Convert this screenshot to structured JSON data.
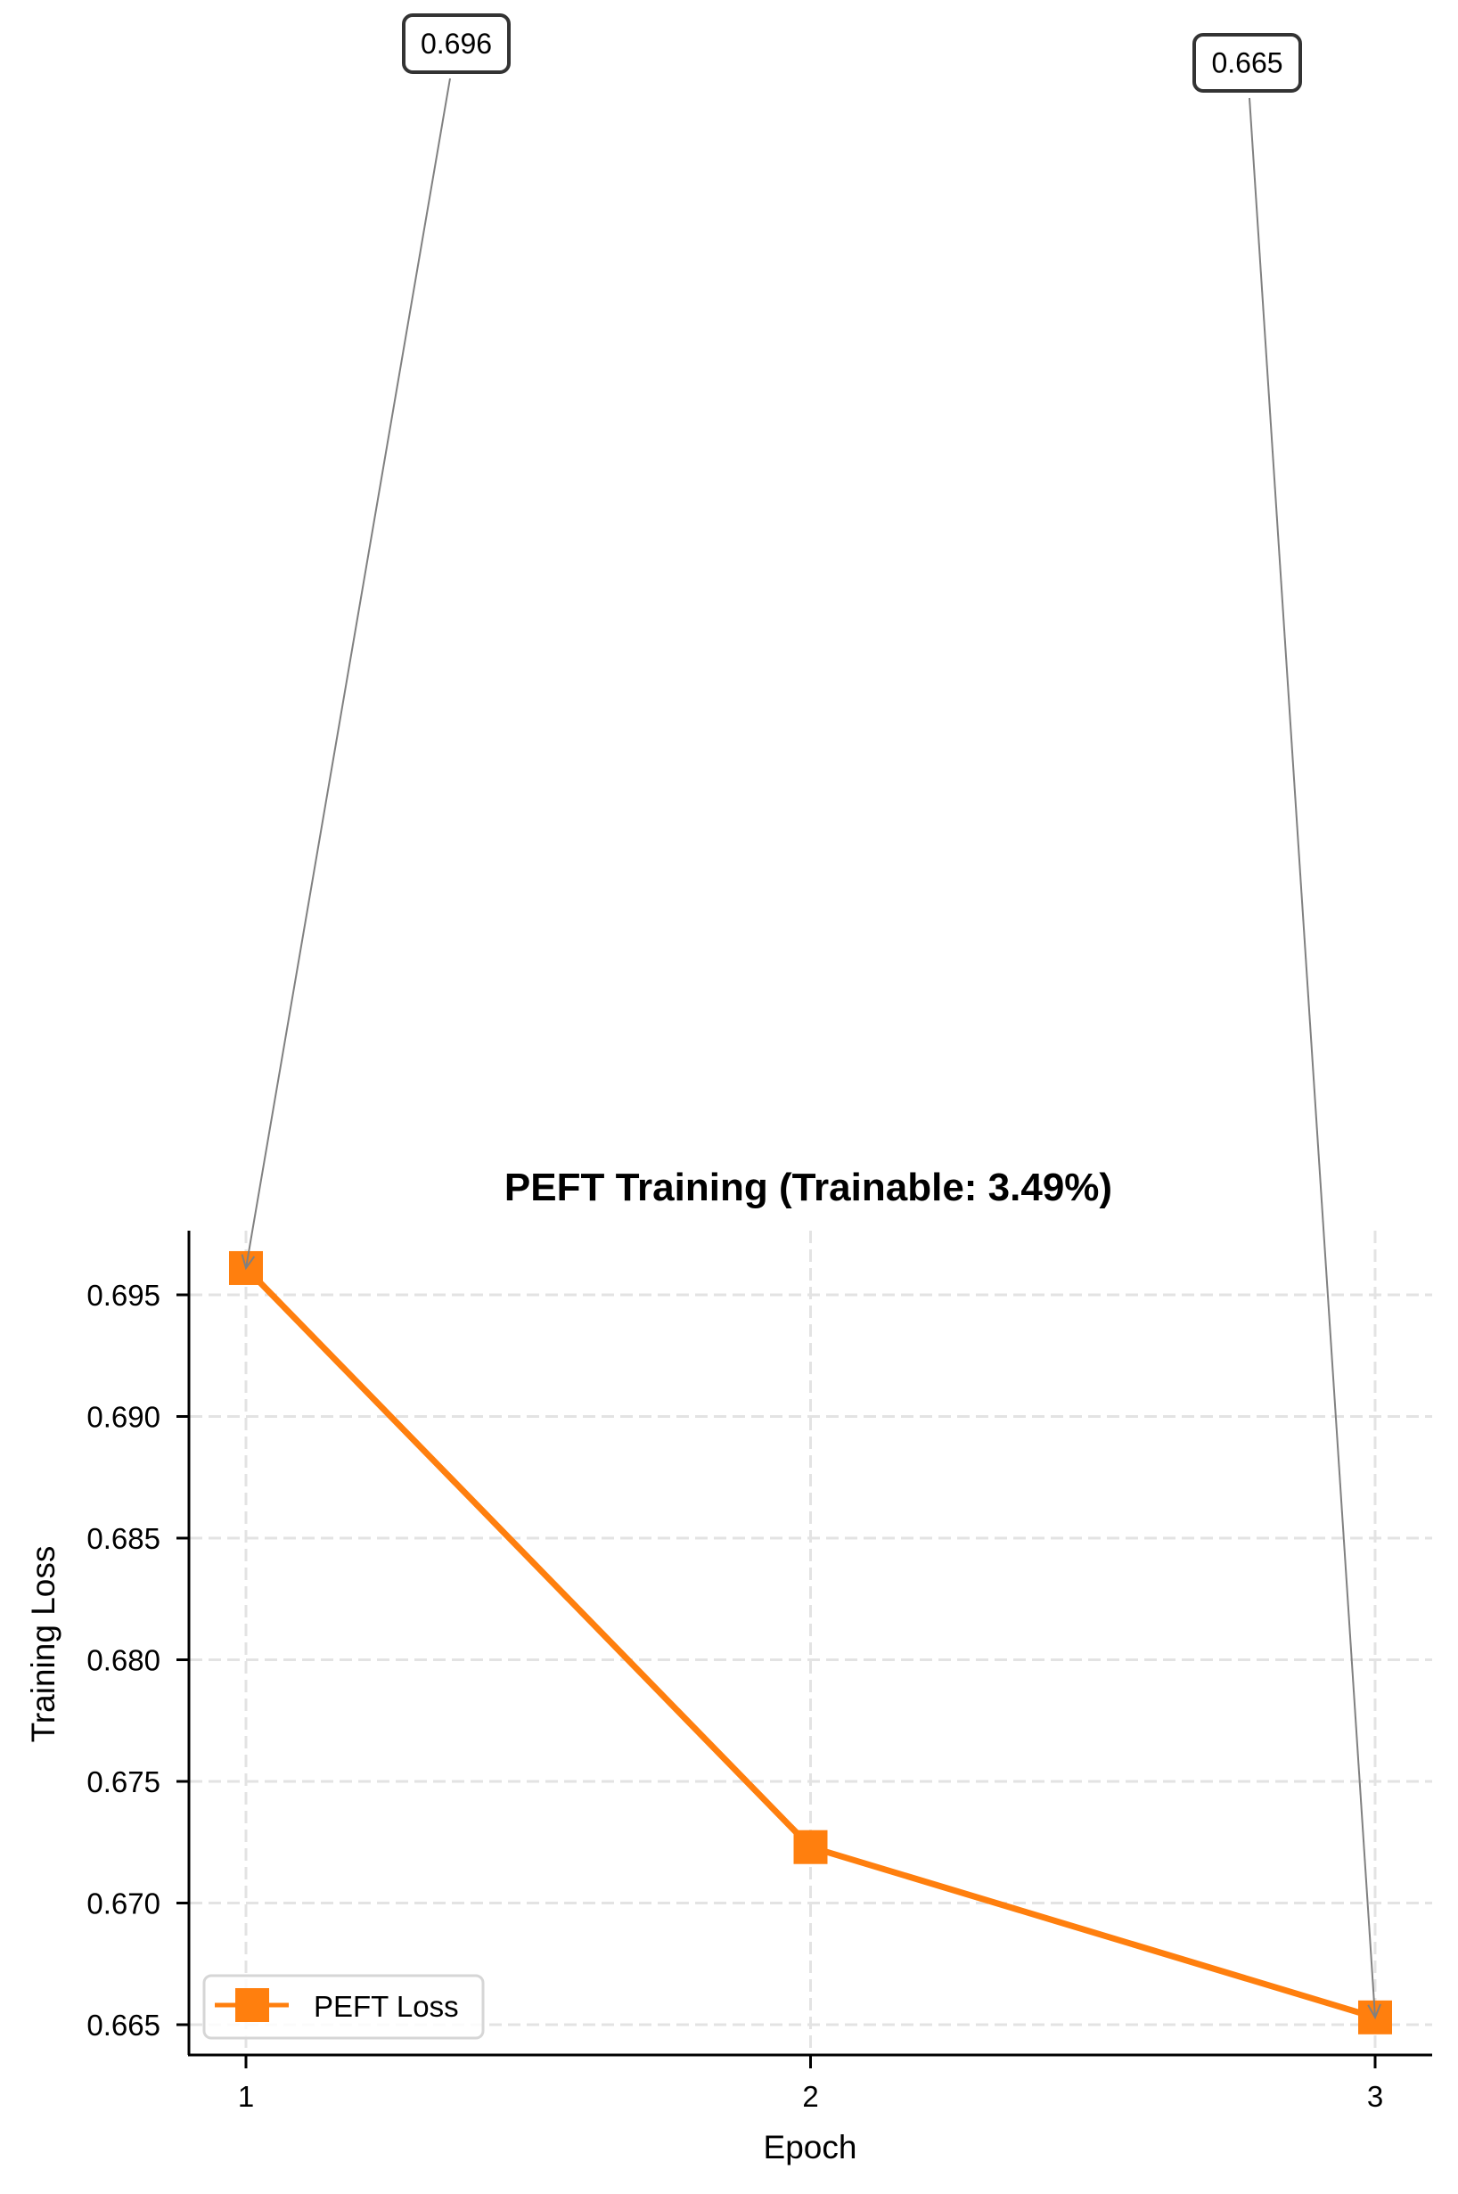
{
  "chart_data": {
    "type": "line",
    "title": "PEFT Training (Trainable: 3.49%)",
    "xlabel": "Epoch",
    "ylabel": "Training Loss",
    "x": [
      1,
      2,
      3
    ],
    "series": [
      {
        "name": "PEFT Loss",
        "values": [
          0.6961,
          0.6723,
          0.6653
        ],
        "color": "#ff7f0e",
        "marker": "square"
      }
    ],
    "x_ticks": [
      "1",
      "2",
      "3"
    ],
    "y_ticks": [
      "0.665",
      "0.670",
      "0.675",
      "0.680",
      "0.685",
      "0.690",
      "0.695"
    ],
    "ylim": [
      0.6636,
      0.6976
    ],
    "xlim": [
      0.9,
      3.1
    ],
    "grid": true,
    "legend_position": "lower left",
    "annotations": [
      {
        "text": "0.696",
        "x": 1,
        "y": 0.6961
      },
      {
        "text": "0.665",
        "x": 3,
        "y": 0.6653
      }
    ]
  },
  "legend": {
    "label": "PEFT Loss"
  },
  "colors": {
    "line": "#ff7f0e",
    "grid": "#e3e3e3",
    "arrow": "#808080",
    "legend_border": "#d6d6d6"
  }
}
